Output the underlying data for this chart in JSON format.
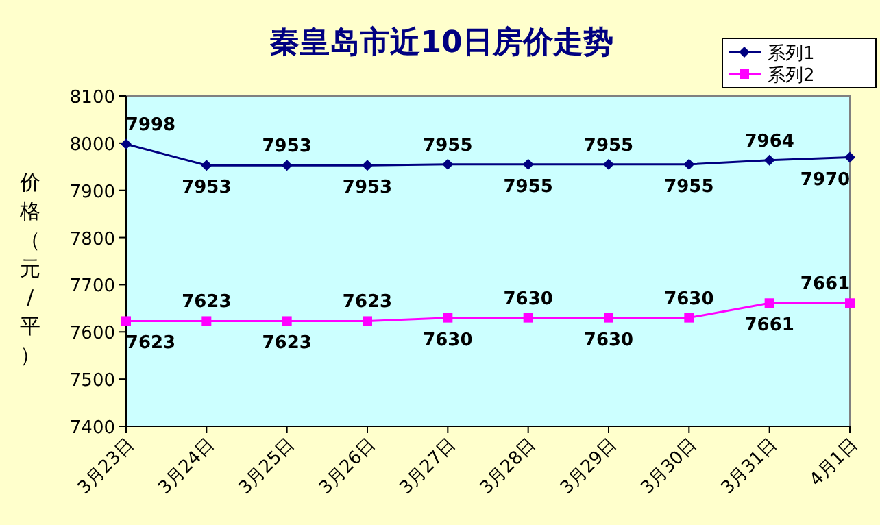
{
  "chart_data": {
    "type": "line",
    "title": "秦皇岛市近10日房价走势",
    "ylabel": "价格（元/平）",
    "categories": [
      "3月23日",
      "3月24日",
      "3月25日",
      "3月26日",
      "3月27日",
      "3月28日",
      "3月29日",
      "3月30日",
      "3月31日",
      "4月1日"
    ],
    "series": [
      {
        "name": "系列1",
        "color": "#000080",
        "marker": "diamond",
        "values": [
          7998,
          7953,
          7953,
          7953,
          7955,
          7955,
          7955,
          7955,
          7964,
          7970
        ]
      },
      {
        "name": "系列2",
        "color": "#ff00ff",
        "marker": "square",
        "values": [
          7623,
          7623,
          7623,
          7623,
          7630,
          7630,
          7630,
          7630,
          7661,
          7661
        ]
      }
    ],
    "ylim": [
      7400,
      8100
    ],
    "yticks": [
      7400,
      7500,
      7600,
      7700,
      7800,
      7900,
      8000,
      8100
    ],
    "data_labels": true,
    "legend": "top right",
    "line_style": "solid",
    "grid": false
  }
}
